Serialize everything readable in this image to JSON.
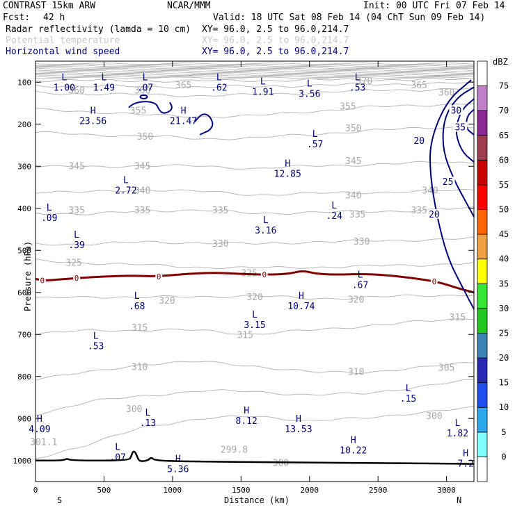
{
  "header": {
    "model": "CONTRAST 15km ARW",
    "org": "NCAR/MMM",
    "init": "Init: 00 UTC Fri 07 Feb 14",
    "fcst_label": "Fcst:",
    "fcst_value": "42 h",
    "valid": "Valid: 18 UTC Sat 08 Feb 14 (04 ChT Sun 09 Feb 14)"
  },
  "fields": [
    {
      "name": "Radar reflectivity (lamda = 10 cm)",
      "xy": "XY=  96.0,  2.5 to  96.0,214.7",
      "color": "#000000"
    },
    {
      "name": "Potential temperature",
      "xy": "XY=  96.0,  2.5 to  96.0,214.7",
      "color": "#c8c8c8"
    },
    {
      "name": "Horizontal wind speed",
      "xy": "XY=  96.0,  2.5 to  96.0,214.7",
      "color": "#00007a"
    }
  ],
  "colorbar": {
    "unit": "dBZ",
    "levels": [
      "0",
      "5",
      "10",
      "15",
      "20",
      "25",
      "30",
      "35",
      "40",
      "45",
      "50",
      "55",
      "60",
      "65",
      "70",
      "75"
    ],
    "colors": [
      "#ffffff",
      "#7fffff",
      "#2aa8f0",
      "#1e4ef0",
      "#2828b4",
      "#3c82b4",
      "#1ec81e",
      "#32e632",
      "#ffff00",
      "#f0a040",
      "#ff6400",
      "#ff0000",
      "#c80000",
      "#a03c50",
      "#8c2896",
      "#c080c8",
      "#ffffff"
    ]
  },
  "chart_data": {
    "type": "cross-section",
    "xlabel": "Distance (km)",
    "ylabel": "Pressure (hPa)",
    "xlim": [
      0,
      3200
    ],
    "ylim": [
      1050,
      50
    ],
    "xticks": [
      0,
      500,
      1000,
      1500,
      2000,
      2500,
      3000
    ],
    "yticks": [
      100,
      200,
      300,
      400,
      500,
      600,
      700,
      800,
      900,
      1000
    ],
    "x_endpoints": {
      "left": "S",
      "right": "N"
    },
    "theta_contours": [
      {
        "value": 300,
        "p": [
          995,
          960,
          920,
          900,
          895,
          905,
          900,
          885,
          875
        ],
        "label": "300"
      },
      {
        "value": 305,
        "p": [
          890,
          860,
          845,
          835,
          835,
          845,
          840,
          825,
          808
        ],
        "label": "305"
      },
      {
        "value": 310,
        "p": [
          805,
          790,
          770,
          765,
          775,
          790,
          790,
          780,
          765
        ],
        "label": "310"
      },
      {
        "value": 315,
        "p": [
          700,
          690,
          690,
          690,
          700,
          690,
          680,
          670,
          660
        ],
        "label": "315"
      },
      {
        "value": 320,
        "p": [
          615,
          610,
          612,
          610,
          608,
          615,
          612,
          608,
          605
        ],
        "label": "320"
      },
      {
        "value": 325,
        "p": [
          525,
          530,
          535,
          540,
          542,
          540,
          538,
          535,
          530
        ],
        "label": "325"
      },
      {
        "value": 330,
        "p": [
          485,
          485,
          480,
          482,
          485,
          480,
          478,
          475,
          472
        ],
        "label": "330"
      },
      {
        "value": 335,
        "p": [
          410,
          415,
          405,
          405,
          412,
          410,
          408,
          405,
          400
        ],
        "label": "335"
      },
      {
        "value": 340,
        "p": [
          360,
          362,
          355,
          360,
          368,
          365,
          362,
          360,
          356
        ],
        "label": "340"
      },
      {
        "value": 345,
        "p": [
          300,
          302,
          298,
          300,
          305,
          300,
          296,
          292,
          290
        ],
        "label": "345"
      },
      {
        "value": 350,
        "p": [
          220,
          225,
          228,
          235,
          232,
          225,
          215,
          210,
          205
        ],
        "label": "350"
      },
      {
        "value": 355,
        "p": [
          165,
          170,
          178,
          182,
          180,
          170,
          160,
          155,
          150
        ],
        "label": "355"
      },
      {
        "value": 360,
        "p": [
          125,
          128,
          130,
          132,
          130,
          125,
          120,
          118,
          115
        ],
        "label": "360"
      },
      {
        "value": 365,
        "p": [
          108,
          110,
          110,
          112,
          110,
          108,
          105,
          104,
          102
        ],
        "label": "365"
      },
      {
        "value": 370,
        "p": [
          95,
          96,
          97,
          97,
          96,
          95,
          94,
          94,
          93
        ],
        "label": "370"
      }
    ],
    "theta_labels": [
      {
        "x": 300,
        "p": 120,
        "t": "360"
      },
      {
        "x": 1080,
        "p": 108,
        "t": "365"
      },
      {
        "x": 2400,
        "p": 98,
        "t": "370"
      },
      {
        "x": 2800,
        "p": 108,
        "t": "365"
      },
      {
        "x": 3000,
        "p": 125,
        "t": "360"
      },
      {
        "x": 780,
        "p": 120,
        "t": "360"
      },
      {
        "x": 750,
        "p": 168,
        "t": "355"
      },
      {
        "x": 2280,
        "p": 158,
        "t": "355"
      },
      {
        "x": 800,
        "p": 230,
        "t": "350"
      },
      {
        "x": 2320,
        "p": 210,
        "t": "350"
      },
      {
        "x": 300,
        "p": 300,
        "t": "345"
      },
      {
        "x": 780,
        "p": 300,
        "t": "345"
      },
      {
        "x": 2320,
        "p": 288,
        "t": "345"
      },
      {
        "x": 2880,
        "p": 358,
        "t": "340"
      },
      {
        "x": 780,
        "p": 358,
        "t": "340"
      },
      {
        "x": 2320,
        "p": 370,
        "t": "340"
      },
      {
        "x": 300,
        "p": 405,
        "t": "335"
      },
      {
        "x": 780,
        "p": 405,
        "t": "335"
      },
      {
        "x": 1350,
        "p": 405,
        "t": "335"
      },
      {
        "x": 2350,
        "p": 415,
        "t": "335"
      },
      {
        "x": 2800,
        "p": 405,
        "t": "335"
      },
      {
        "x": 1350,
        "p": 485,
        "t": "330"
      },
      {
        "x": 2380,
        "p": 480,
        "t": "330"
      },
      {
        "x": 280,
        "p": 530,
        "t": "325"
      },
      {
        "x": 1560,
        "p": 555,
        "t": "325"
      },
      {
        "x": 960,
        "p": 620,
        "t": "320"
      },
      {
        "x": 1600,
        "p": 612,
        "t": "320"
      },
      {
        "x": 2340,
        "p": 618,
        "t": "320"
      },
      {
        "x": 760,
        "p": 685,
        "t": "315"
      },
      {
        "x": 1530,
        "p": 702,
        "t": "315"
      },
      {
        "x": 3080,
        "p": 660,
        "t": "315"
      },
      {
        "x": 760,
        "p": 778,
        "t": "310"
      },
      {
        "x": 2340,
        "p": 790,
        "t": "310"
      },
      {
        "x": 3000,
        "p": 780,
        "t": "305"
      },
      {
        "x": 2910,
        "p": 895,
        "t": "300"
      },
      {
        "x": 720,
        "p": 878,
        "t": "300"
      },
      {
        "x": 60,
        "p": 957,
        "t": "301.1"
      },
      {
        "x": 1450,
        "p": 975,
        "t": "299.8"
      },
      {
        "x": 1790,
        "p": 1006,
        "t": "300"
      }
    ],
    "wind_contours": [
      {
        "value": 20,
        "points": [
          [
            3180,
            95
          ],
          [
            3000,
            145
          ],
          [
            2880,
            240
          ],
          [
            2880,
            320
          ],
          [
            2930,
            420
          ],
          [
            3010,
            520
          ],
          [
            3120,
            590
          ],
          [
            3200,
            640
          ]
        ],
        "label": "20"
      },
      {
        "value": 25,
        "points": [
          [
            3200,
            112
          ],
          [
            3080,
            135
          ],
          [
            2980,
            185
          ],
          [
            2970,
            260
          ],
          [
            3050,
            330
          ],
          [
            3150,
            390
          ],
          [
            3200,
            420
          ]
        ],
        "label": "25"
      },
      {
        "value": 30,
        "points": [
          [
            3200,
            140
          ],
          [
            3110,
            165
          ],
          [
            3060,
            215
          ],
          [
            3110,
            265
          ],
          [
            3200,
            290
          ]
        ],
        "label": "30"
      },
      {
        "value": 35,
        "points": [
          [
            3200,
            165
          ],
          [
            3150,
            180
          ],
          [
            3140,
            210
          ],
          [
            3200,
            225
          ]
        ],
        "label": "35"
      }
    ],
    "wind_contour_labels": [
      {
        "x": 2800,
        "p": 240,
        "t": "20"
      },
      {
        "x": 2910,
        "p": 415,
        "t": "20"
      },
      {
        "x": 3010,
        "p": 338,
        "t": "25"
      },
      {
        "x": 3070,
        "p": 168,
        "t": "30"
      },
      {
        "x": 3100,
        "p": 208,
        "t": "35"
      }
    ],
    "wind_extremes": [
      {
        "type": "L",
        "x": 210,
        "p": 100,
        "value": "1.00"
      },
      {
        "type": "L",
        "x": 500,
        "p": 100,
        "value": "1.49"
      },
      {
        "type": "L",
        "x": 800,
        "p": 100,
        "value": ".07"
      },
      {
        "type": "L",
        "x": 1340,
        "p": 100,
        "value": ".62"
      },
      {
        "type": "L",
        "x": 1660,
        "p": 110,
        "value": "1.91"
      },
      {
        "type": "L",
        "x": 2000,
        "p": 115,
        "value": "3.56"
      },
      {
        "type": "L",
        "x": 2350,
        "p": 100,
        "value": ".53"
      },
      {
        "type": "H",
        "x": 420,
        "p": 180,
        "value": "23.56"
      },
      {
        "type": "H",
        "x": 1080,
        "p": 180,
        "value": "21.47"
      },
      {
        "type": "L",
        "x": 2040,
        "p": 235,
        "value": ".57"
      },
      {
        "type": "H",
        "x": 1840,
        "p": 305,
        "value": "12.85"
      },
      {
        "type": "L",
        "x": 660,
        "p": 345,
        "value": "2.72"
      },
      {
        "type": "L",
        "x": 100,
        "p": 410,
        "value": ".09"
      },
      {
        "type": "L",
        "x": 2180,
        "p": 405,
        "value": ".24"
      },
      {
        "type": "L",
        "x": 1680,
        "p": 440,
        "value": "3.16"
      },
      {
        "type": "L",
        "x": 300,
        "p": 475,
        "value": ".39"
      },
      {
        "type": "L",
        "x": 2370,
        "p": 570,
        "value": ".67"
      },
      {
        "type": "L",
        "x": 740,
        "p": 620,
        "value": ".68"
      },
      {
        "type": "H",
        "x": 1940,
        "p": 620,
        "value": "10.74"
      },
      {
        "type": "L",
        "x": 1600,
        "p": 665,
        "value": "3.15"
      },
      {
        "type": "L",
        "x": 440,
        "p": 715,
        "value": ".53"
      },
      {
        "type": "L",
        "x": 2720,
        "p": 840,
        "value": ".15"
      },
      {
        "type": "L",
        "x": 820,
        "p": 898,
        "value": ".13"
      },
      {
        "type": "H",
        "x": 1540,
        "p": 893,
        "value": "8.12"
      },
      {
        "type": "H",
        "x": 30,
        "p": 913,
        "value": "4.09"
      },
      {
        "type": "H",
        "x": 1920,
        "p": 913,
        "value": "13.53"
      },
      {
        "type": "L",
        "x": 3080,
        "p": 923,
        "value": "1.82"
      },
      {
        "type": "H",
        "x": 2320,
        "p": 963,
        "value": "10.22"
      },
      {
        "type": "L",
        "x": 600,
        "p": 980,
        "value": ".07"
      },
      {
        "type": "H",
        "x": 1040,
        "p": 1008,
        "value": "5.36"
      },
      {
        "type": "H",
        "x": 3140,
        "p": 995,
        "value": "7.2"
      }
    ],
    "reflectivity_zero_contour": {
      "value": 0,
      "color": "#800000",
      "points": [
        [
          0,
          568
        ],
        [
          60,
          572
        ],
        [
          150,
          570
        ],
        [
          300,
          566
        ],
        [
          500,
          562
        ],
        [
          700,
          560
        ],
        [
          900,
          562
        ],
        [
          1100,
          556
        ],
        [
          1300,
          553
        ],
        [
          1500,
          556
        ],
        [
          1700,
          558
        ],
        [
          1850,
          556
        ],
        [
          1950,
          548
        ],
        [
          2050,
          556
        ],
        [
          2200,
          558
        ],
        [
          2400,
          556
        ],
        [
          2600,
          560
        ],
        [
          2800,
          568
        ],
        [
          2950,
          576
        ],
        [
          3100,
          592
        ],
        [
          3200,
          600
        ]
      ],
      "labels": [
        {
          "x": 50,
          "t": "0"
        },
        {
          "x": 300,
          "t": "0"
        },
        {
          "x": 900,
          "t": "0"
        },
        {
          "x": 1670,
          "t": "0"
        },
        {
          "x": 2910,
          "t": "0"
        }
      ]
    },
    "terrain": [
      [
        0,
        1000
      ],
      [
        200,
        1000
      ],
      [
        230,
        995
      ],
      [
        260,
        1000
      ],
      [
        680,
        1000
      ],
      [
        700,
        990
      ],
      [
        710,
        978
      ],
      [
        730,
        980
      ],
      [
        750,
        998
      ],
      [
        770,
        1002
      ],
      [
        820,
        1000
      ],
      [
        845,
        992
      ],
      [
        870,
        1000
      ],
      [
        1100,
        1002
      ],
      [
        2000,
        1005
      ],
      [
        2600,
        1006
      ],
      [
        3200,
        1008
      ]
    ],
    "jet_contour": {
      "value": 20,
      "points": [
        [
          680,
          160
        ],
        [
          720,
          150
        ],
        [
          800,
          145
        ],
        [
          880,
          150
        ],
        [
          900,
          165
        ],
        [
          930,
          175
        ],
        [
          980,
          170
        ],
        [
          1000,
          160
        ],
        [
          980,
          148
        ]
      ],
      "points2": [
        [
          1160,
          195
        ],
        [
          1200,
          180
        ],
        [
          1230,
          175
        ],
        [
          1270,
          180
        ],
        [
          1300,
          200
        ],
        [
          1270,
          215
        ],
        [
          1230,
          220
        ],
        [
          1200,
          225
        ]
      ]
    }
  }
}
